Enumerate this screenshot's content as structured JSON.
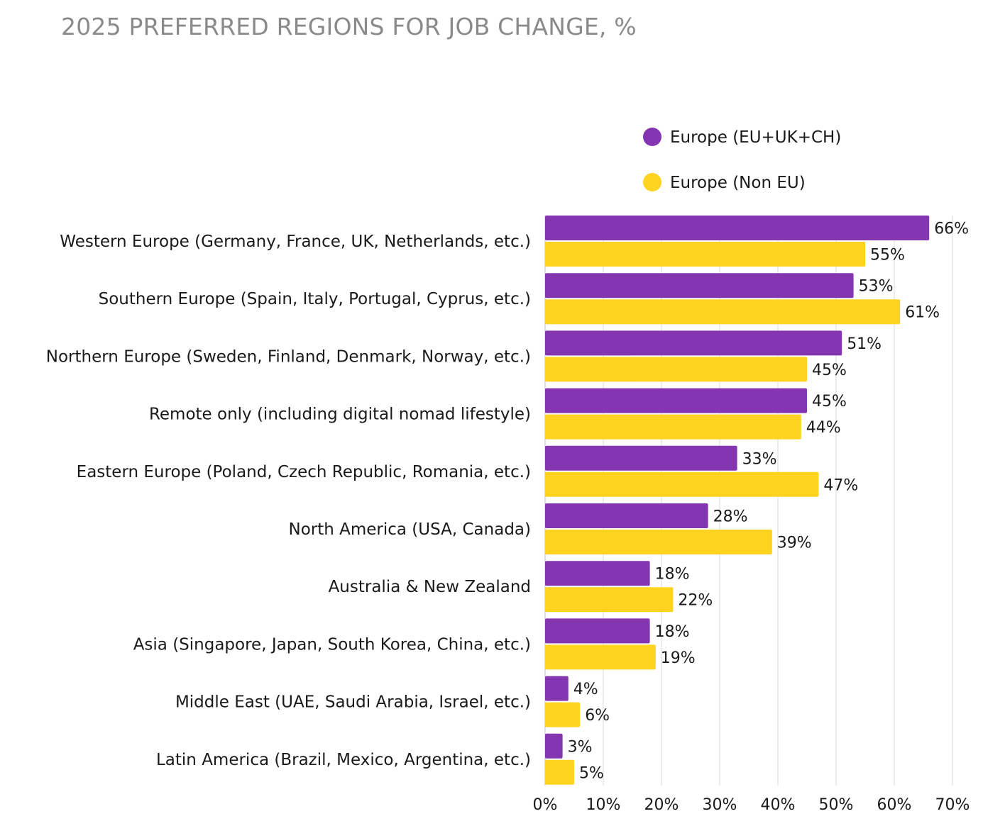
{
  "chart_data": {
    "type": "bar",
    "orientation": "horizontal",
    "title": "2025 PREFERRED REGIONS FOR JOB CHANGE, %",
    "xlabel": "",
    "ylabel": "",
    "xlim": [
      0,
      70
    ],
    "x_ticks": [
      "0%",
      "10%",
      "20%",
      "30%",
      "40%",
      "50%",
      "60%",
      "70%"
    ],
    "x_tick_values": [
      0,
      10,
      20,
      30,
      40,
      50,
      60,
      70
    ],
    "grid": "vertical",
    "legend_position": "top-right",
    "categories": [
      "Western Europe (Germany, France, UK, Netherlands, etc.)",
      "Southern Europe (Spain, Italy, Portugal, Cyprus, etc.)",
      "Northern Europe (Sweden, Finland, Denmark, Norway, etc.)",
      "Remote only (including digital nomad lifestyle)",
      "Eastern Europe (Poland, Czech Republic, Romania, etc.)",
      "North America (USA, Canada)",
      "Australia & New Zealand",
      "Asia (Singapore, Japan, South Korea, China, etc.)",
      "Middle East (UAE, Saudi Arabia, Israel, etc.)",
      "Latin America (Brazil, Mexico, Argentina, etc.)"
    ],
    "series": [
      {
        "name": "Europe (EU+UK+CH)",
        "color": "#8435B0",
        "values": [
          66,
          53,
          51,
          45,
          33,
          28,
          18,
          18,
          4,
          3
        ],
        "labels": [
          "66%",
          "53%",
          "51%",
          "45%",
          "33%",
          "28%",
          "18%",
          "18%",
          "4%",
          "3%"
        ]
      },
      {
        "name": "Europe (Non EU)",
        "color": "#FFD320",
        "values": [
          55,
          61,
          45,
          44,
          47,
          39,
          22,
          19,
          6,
          5
        ],
        "labels": [
          "55%",
          "61%",
          "45%",
          "44%",
          "47%",
          "39%",
          "22%",
          "19%",
          "6%",
          "5%"
        ]
      }
    ]
  }
}
